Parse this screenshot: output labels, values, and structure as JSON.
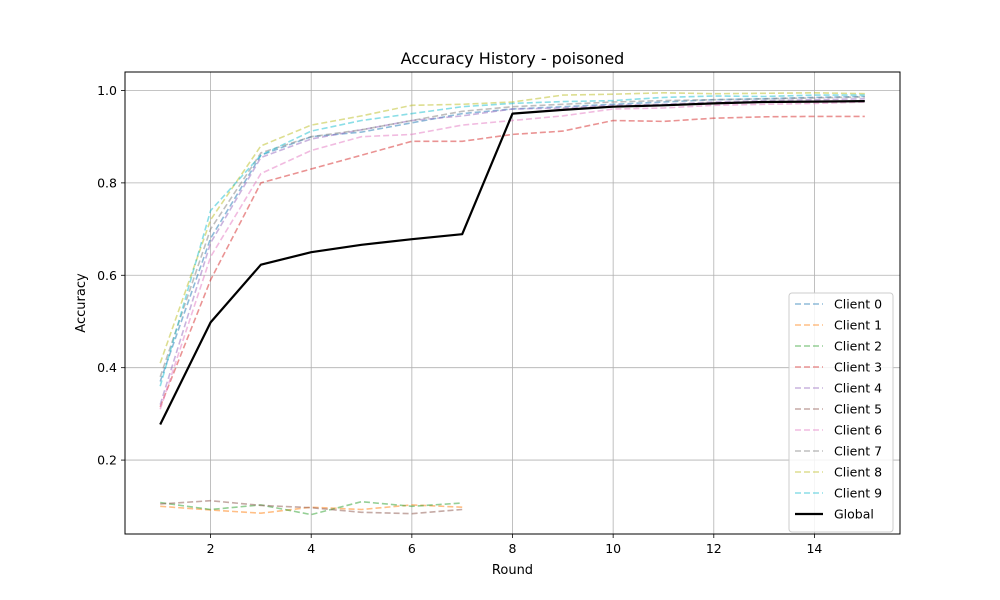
{
  "chart_data": {
    "type": "line",
    "title": "Accuracy History - poisoned",
    "xlabel": "Round",
    "ylabel": "Accuracy",
    "xlim": [
      0.3,
      15.7
    ],
    "ylim": [
      0.04,
      1.04
    ],
    "xticks": [
      2,
      4,
      6,
      8,
      10,
      12,
      14
    ],
    "yticks": [
      0.2,
      0.4,
      0.6,
      0.8,
      1.0
    ],
    "ytick_labels": [
      "0.2",
      "0.4",
      "0.6",
      "0.8",
      "1.0"
    ],
    "grid": true,
    "legend_position": "lower-right",
    "series": [
      {
        "name": "Client 0",
        "color": "#1f77b4",
        "style": "dashed",
        "x": [
          1,
          2,
          3,
          4,
          5,
          6,
          7,
          8,
          9,
          10,
          11,
          12,
          13,
          14,
          15
        ],
        "y": [
          0.37,
          0.68,
          0.86,
          0.9,
          0.91,
          0.93,
          0.95,
          0.96,
          0.965,
          0.97,
          0.975,
          0.98,
          0.982,
          0.985,
          0.987
        ]
      },
      {
        "name": "Client 1",
        "color": "#ff7f0e",
        "style": "dashed",
        "x": [
          1,
          2,
          3,
          4,
          5,
          6,
          7
        ],
        "y": [
          0.1,
          0.092,
          0.085,
          0.098,
          0.093,
          0.103,
          0.098
        ]
      },
      {
        "name": "Client 2",
        "color": "#2ca02c",
        "style": "dashed",
        "x": [
          1,
          2,
          3,
          4,
          5,
          6,
          7
        ],
        "y": [
          0.108,
          0.093,
          0.103,
          0.082,
          0.11,
          0.1,
          0.107
        ]
      },
      {
        "name": "Client 3",
        "color": "#d62728",
        "style": "dashed",
        "x": [
          1,
          2,
          3,
          4,
          5,
          6,
          7,
          8,
          9,
          10,
          11,
          12,
          13,
          14,
          15
        ],
        "y": [
          0.315,
          0.59,
          0.8,
          0.83,
          0.86,
          0.89,
          0.89,
          0.905,
          0.912,
          0.935,
          0.933,
          0.94,
          0.943,
          0.944,
          0.944
        ]
      },
      {
        "name": "Client 4",
        "color": "#9467bd",
        "style": "dashed",
        "x": [
          1,
          2,
          3,
          4,
          5,
          6,
          7,
          8,
          9,
          10,
          11,
          12,
          13,
          14,
          15
        ],
        "y": [
          0.32,
          0.67,
          0.855,
          0.895,
          0.915,
          0.935,
          0.945,
          0.96,
          0.962,
          0.968,
          0.97,
          0.975,
          0.978,
          0.98,
          0.982
        ]
      },
      {
        "name": "Client 5",
        "color": "#8c564b",
        "style": "dashed",
        "x": [
          1,
          2,
          3,
          4,
          5,
          6,
          7
        ],
        "y": [
          0.105,
          0.112,
          0.102,
          0.097,
          0.087,
          0.084,
          0.093
        ]
      },
      {
        "name": "Client 6",
        "color": "#e377c2",
        "style": "dashed",
        "x": [
          1,
          2,
          3,
          4,
          5,
          6,
          7,
          8,
          9,
          10,
          11,
          12,
          13,
          14,
          15
        ],
        "y": [
          0.31,
          0.64,
          0.82,
          0.87,
          0.9,
          0.905,
          0.925,
          0.935,
          0.945,
          0.96,
          0.962,
          0.968,
          0.97,
          0.972,
          0.975
        ]
      },
      {
        "name": "Client 7",
        "color": "#7f7f7f",
        "style": "dashed",
        "x": [
          1,
          2,
          3,
          4,
          5,
          6,
          7,
          8,
          9,
          10,
          11,
          12,
          13,
          14,
          15
        ],
        "y": [
          0.38,
          0.7,
          0.865,
          0.9,
          0.915,
          0.935,
          0.955,
          0.965,
          0.97,
          0.975,
          0.978,
          0.98,
          0.982,
          0.984,
          0.986
        ]
      },
      {
        "name": "Client 8",
        "color": "#bcbd22",
        "style": "dashed",
        "x": [
          1,
          2,
          3,
          4,
          5,
          6,
          7,
          8,
          9,
          10,
          11,
          12,
          13,
          14,
          15
        ],
        "y": [
          0.41,
          0.72,
          0.88,
          0.925,
          0.945,
          0.968,
          0.97,
          0.975,
          0.99,
          0.992,
          0.995,
          0.993,
          0.994,
          0.995,
          0.993
        ]
      },
      {
        "name": "Client 9",
        "color": "#17becf",
        "style": "dashed",
        "x": [
          1,
          2,
          3,
          4,
          5,
          6,
          7,
          8,
          9,
          10,
          11,
          12,
          13,
          14,
          15
        ],
        "y": [
          0.36,
          0.74,
          0.86,
          0.912,
          0.935,
          0.95,
          0.965,
          0.972,
          0.976,
          0.978,
          0.985,
          0.988,
          0.987,
          0.99,
          0.99
        ]
      },
      {
        "name": "Global",
        "color": "#000000",
        "style": "solid",
        "x": [
          1,
          2,
          3,
          4,
          5,
          6,
          7,
          8,
          9,
          10,
          11,
          12,
          13,
          14,
          15
        ],
        "y": [
          0.277,
          0.498,
          0.623,
          0.65,
          0.666,
          0.678,
          0.689,
          0.95,
          0.958,
          0.965,
          0.968,
          0.972,
          0.975,
          0.976,
          0.977
        ]
      }
    ]
  }
}
